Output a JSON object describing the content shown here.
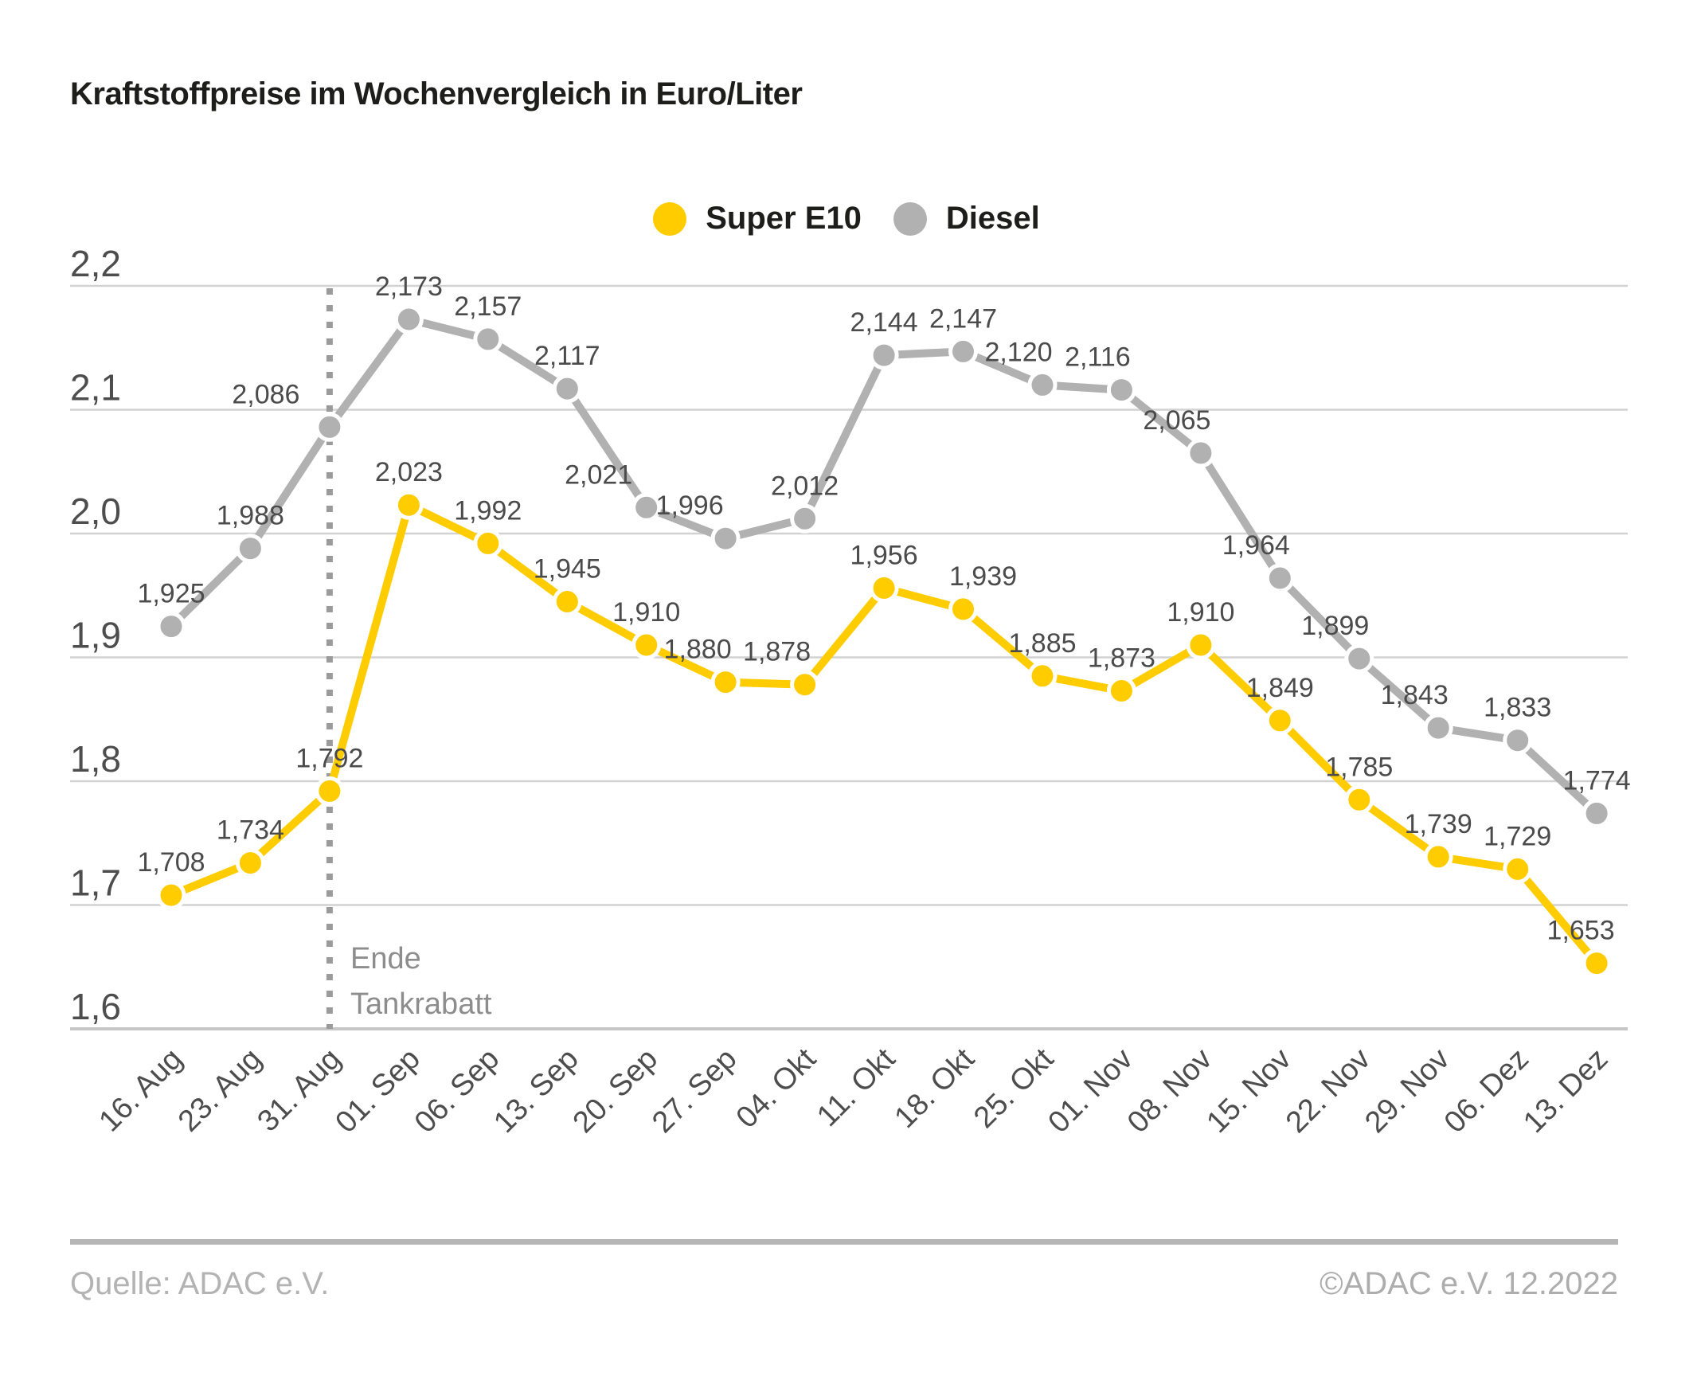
{
  "title": "Kraftstoffpreise im Wochenvergleich in Euro/Liter",
  "footer": {
    "source": "Quelle: ADAC e.V.",
    "copyright": "©ADAC e.V.  12.2022"
  },
  "chart_data": {
    "type": "line",
    "title": "Kraftstoffpreise im Wochenvergleich in Euro/Liter",
    "unit": "Euro/Liter",
    "categories": [
      "16. Aug",
      "23. Aug",
      "31. Aug",
      "01. Sep",
      "06. Sep",
      "13. Sep",
      "20. Sep",
      "27. Sep",
      "04. Okt",
      "11. Okt",
      "18. Okt",
      "25. Okt",
      "01. Nov",
      "08. Nov",
      "15. Nov",
      "22. Nov",
      "29. Nov",
      "06. Dez",
      "13. Dez"
    ],
    "series": [
      {
        "name": "Diesel",
        "color": "#b1b1b1",
        "values": [
          1.925,
          1.988,
          2.086,
          2.173,
          2.157,
          2.117,
          2.021,
          1.996,
          2.012,
          2.144,
          2.147,
          2.12,
          2.116,
          2.065,
          1.964,
          1.899,
          1.843,
          1.833,
          1.774
        ],
        "labels": [
          "1,925",
          "1,988",
          "2,086",
          "2,173",
          "2,157",
          "2,117",
          "2,021",
          "1,996",
          "2,012",
          "2,144",
          "2,147",
          "2,120",
          "2,116",
          "2,065",
          "1,964",
          "1,899",
          "1,843",
          "1,833",
          "1,774"
        ],
        "label_dx": {
          "2": -80,
          "6": -60,
          "7": -45,
          "11": -30,
          "12": -30,
          "13": -30,
          "14": -30,
          "15": -30,
          "16": -30
        }
      },
      {
        "name": "Super E10",
        "color": "#ffcc00",
        "values": [
          1.708,
          1.734,
          1.792,
          2.023,
          1.992,
          1.945,
          1.91,
          1.88,
          1.878,
          1.956,
          1.939,
          1.885,
          1.873,
          1.91,
          1.849,
          1.785,
          1.739,
          1.729,
          1.653
        ],
        "labels": [
          "1,708",
          "1,734",
          "1,792",
          "2,023",
          "1,992",
          "1,945",
          "1,910",
          "1,880",
          "1,878",
          "1,956",
          "1,939",
          "1,885",
          "1,873",
          "1,910",
          "1,849",
          "1,785",
          "1,739",
          "1,729",
          "1,653"
        ],
        "label_dx": {
          "7": -35,
          "8": -35,
          "10": 25,
          "18": -20
        }
      }
    ],
    "legend": [
      "Super E10",
      "Diesel"
    ],
    "legend_position": "top-center",
    "ylim": [
      1.6,
      2.2
    ],
    "yticks": [
      {
        "v": 2.2,
        "label": "2,2"
      },
      {
        "v": 2.1,
        "label": "2,1"
      },
      {
        "v": 2.0,
        "label": "2,0"
      },
      {
        "v": 1.9,
        "label": "1,9"
      },
      {
        "v": 1.8,
        "label": "1,8"
      },
      {
        "v": 1.7,
        "label": "1,7"
      },
      {
        "v": 1.6,
        "label": "1,6"
      }
    ],
    "grid": true,
    "annotation": {
      "index": 2,
      "at_category": "31. Aug",
      "lines": [
        "Ende",
        "Tankrabatt"
      ]
    }
  }
}
